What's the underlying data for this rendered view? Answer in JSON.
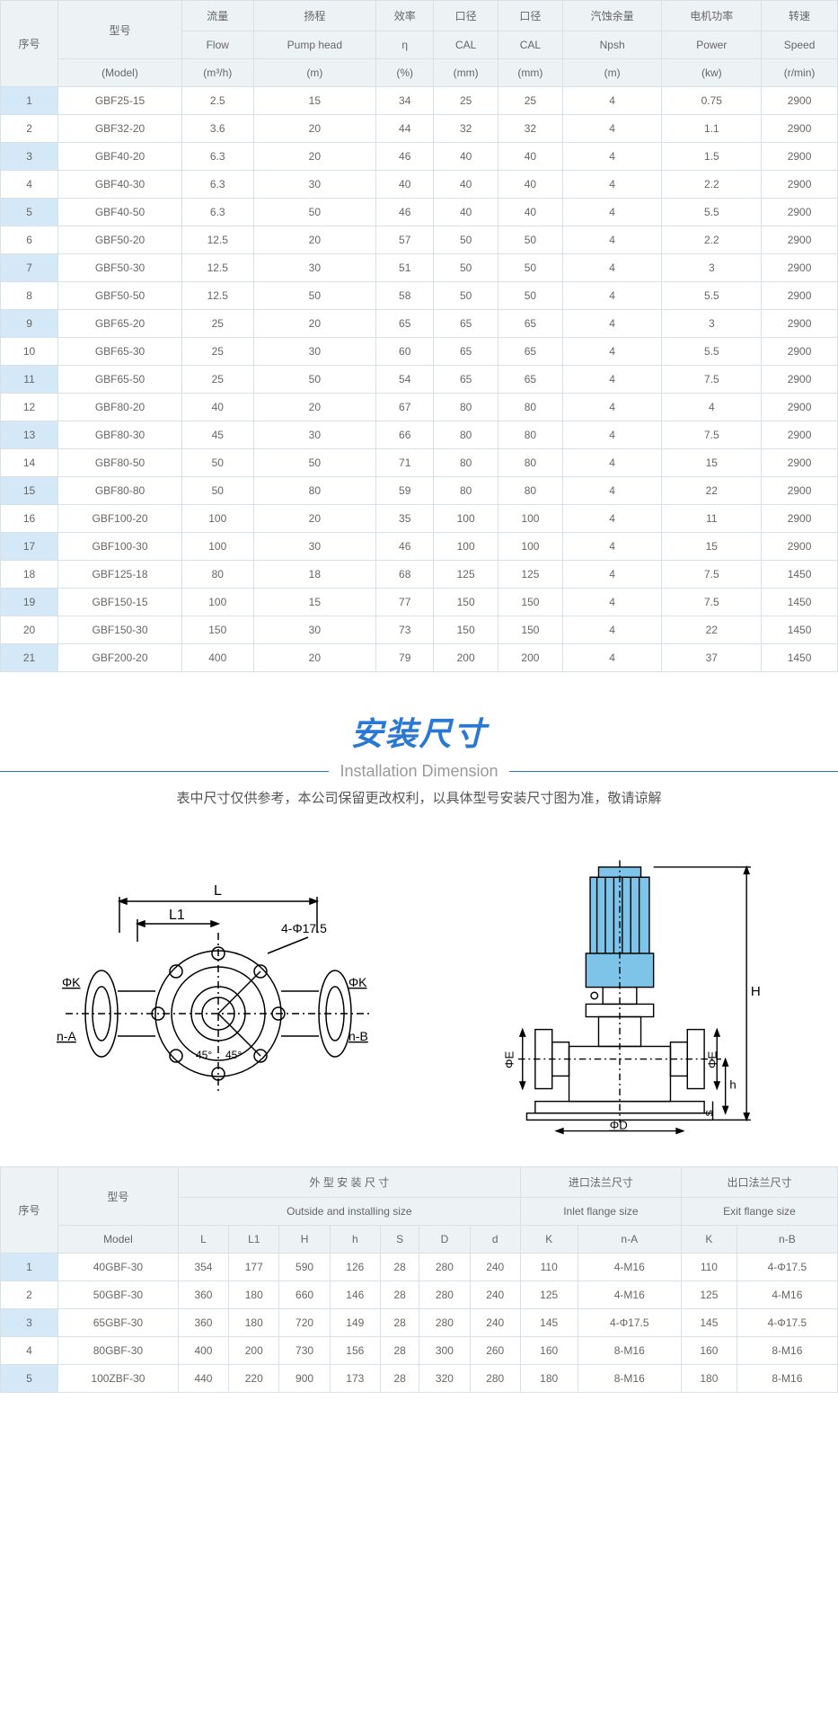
{
  "table1": {
    "headers": {
      "idx": "序号",
      "model_cn": "型号",
      "model_en": "(Model)",
      "flow_cn": "流量",
      "flow_en": "Flow",
      "flow_unit": "(m³/h)",
      "head_cn": "扬程",
      "head_en": "Pump head",
      "head_unit": "(m)",
      "eff_cn": "效率",
      "eff_en": "η",
      "eff_unit": "(%)",
      "cal1_cn": "口径",
      "cal1_en": "CAL",
      "cal1_unit": "(mm)",
      "cal2_cn": "口径",
      "cal2_en": "CAL",
      "cal2_unit": "(mm)",
      "npsh_cn": "汽蚀余量",
      "npsh_en": "Npsh",
      "npsh_unit": "(m)",
      "power_cn": "电机功率",
      "power_en": "Power",
      "power_unit": "(kw)",
      "speed_cn": "转速",
      "speed_en": "Speed",
      "speed_unit": "(r/min)"
    },
    "rows": [
      [
        "1",
        "GBF25-15",
        "2.5",
        "15",
        "34",
        "25",
        "25",
        "4",
        "0.75",
        "2900"
      ],
      [
        "2",
        "GBF32-20",
        "3.6",
        "20",
        "44",
        "32",
        "32",
        "4",
        "1.1",
        "2900"
      ],
      [
        "3",
        "GBF40-20",
        "6.3",
        "20",
        "46",
        "40",
        "40",
        "4",
        "1.5",
        "2900"
      ],
      [
        "4",
        "GBF40-30",
        "6.3",
        "30",
        "40",
        "40",
        "40",
        "4",
        "2.2",
        "2900"
      ],
      [
        "5",
        "GBF40-50",
        "6.3",
        "50",
        "46",
        "40",
        "40",
        "4",
        "5.5",
        "2900"
      ],
      [
        "6",
        "GBF50-20",
        "12.5",
        "20",
        "57",
        "50",
        "50",
        "4",
        "2.2",
        "2900"
      ],
      [
        "7",
        "GBF50-30",
        "12.5",
        "30",
        "51",
        "50",
        "50",
        "4",
        "3",
        "2900"
      ],
      [
        "8",
        "GBF50-50",
        "12.5",
        "50",
        "58",
        "50",
        "50",
        "4",
        "5.5",
        "2900"
      ],
      [
        "9",
        "GBF65-20",
        "25",
        "20",
        "65",
        "65",
        "65",
        "4",
        "3",
        "2900"
      ],
      [
        "10",
        "GBF65-30",
        "25",
        "30",
        "60",
        "65",
        "65",
        "4",
        "5.5",
        "2900"
      ],
      [
        "11",
        "GBF65-50",
        "25",
        "50",
        "54",
        "65",
        "65",
        "4",
        "7.5",
        "2900"
      ],
      [
        "12",
        "GBF80-20",
        "40",
        "20",
        "67",
        "80",
        "80",
        "4",
        "4",
        "2900"
      ],
      [
        "13",
        "GBF80-30",
        "45",
        "30",
        "66",
        "80",
        "80",
        "4",
        "7.5",
        "2900"
      ],
      [
        "14",
        "GBF80-50",
        "50",
        "50",
        "71",
        "80",
        "80",
        "4",
        "15",
        "2900"
      ],
      [
        "15",
        "GBF80-80",
        "50",
        "80",
        "59",
        "80",
        "80",
        "4",
        "22",
        "2900"
      ],
      [
        "16",
        "GBF100-20",
        "100",
        "20",
        "35",
        "100",
        "100",
        "4",
        "11",
        "2900"
      ],
      [
        "17",
        "GBF100-30",
        "100",
        "30",
        "46",
        "100",
        "100",
        "4",
        "15",
        "2900"
      ],
      [
        "18",
        "GBF125-18",
        "80",
        "18",
        "68",
        "125",
        "125",
        "4",
        "7.5",
        "1450"
      ],
      [
        "19",
        "GBF150-15",
        "100",
        "15",
        "77",
        "150",
        "150",
        "4",
        "7.5",
        "1450"
      ],
      [
        "20",
        "GBF150-30",
        "150",
        "30",
        "73",
        "150",
        "150",
        "4",
        "22",
        "1450"
      ],
      [
        "21",
        "GBF200-20",
        "400",
        "20",
        "79",
        "200",
        "200",
        "4",
        "37",
        "1450"
      ]
    ]
  },
  "section": {
    "title_cn": "安装尺寸",
    "title_en": "Installation Dimension",
    "note": "表中尺寸仅供参考，本公司保留更改权利，以具体型号安装尺寸图为准，敬请谅解"
  },
  "diagram": {
    "labels": {
      "L": "L",
      "L1": "L1",
      "phi17": "4-Φ17.5",
      "phiK": "ΦK",
      "nA": "n-A",
      "nB": "n-B",
      "a45": "45°",
      "H": "H",
      "h": "h",
      "phiE": "ΦE",
      "phiD": "ΦD",
      "S": "S"
    },
    "colors": {
      "line": "#000000",
      "motor": "#7ec4e8",
      "text": "#000000"
    }
  },
  "table2": {
    "headers": {
      "idx": "序号",
      "model_cn": "型号",
      "model_en": "Model",
      "outside_cn": "外 型 安 装 尺 寸",
      "outside_en": "Outside and installing size",
      "inlet_cn": "进口法兰尺寸",
      "inlet_en": "Inlet flange size",
      "exit_cn": "出口法兰尺寸",
      "exit_en": "Exit flange size",
      "L": "L",
      "L1": "L1",
      "H": "H",
      "h": "h",
      "S": "S",
      "D": "D",
      "d": "d",
      "K": "K",
      "nA": "n-A",
      "nB": "n-B"
    },
    "rows": [
      [
        "1",
        "40GBF-30",
        "354",
        "177",
        "590",
        "126",
        "28",
        "280",
        "240",
        "110",
        "4-M16",
        "110",
        "4-Φ17.5"
      ],
      [
        "2",
        "50GBF-30",
        "360",
        "180",
        "660",
        "146",
        "28",
        "280",
        "240",
        "125",
        "4-M16",
        "125",
        "4-M16"
      ],
      [
        "3",
        "65GBF-30",
        "360",
        "180",
        "720",
        "149",
        "28",
        "280",
        "240",
        "145",
        "4-Φ17.5",
        "145",
        "4-Φ17.5"
      ],
      [
        "4",
        "80GBF-30",
        "400",
        "200",
        "730",
        "156",
        "28",
        "300",
        "260",
        "160",
        "8-M16",
        "160",
        "8-M16"
      ],
      [
        "5",
        "100ZBF-30",
        "440",
        "220",
        "900",
        "173",
        "28",
        "320",
        "280",
        "180",
        "8-M16",
        "180",
        "8-M16"
      ]
    ]
  }
}
